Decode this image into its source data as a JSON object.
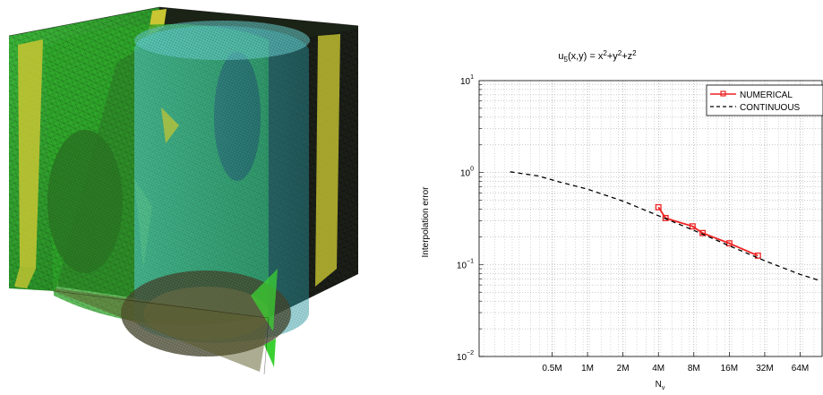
{
  "mesh_figure": {
    "icon": "mesh-cube-icon",
    "colors": {
      "background": "#0b0f08",
      "green": "#2fa82a",
      "yellow": "#c8c632",
      "cyan": "#3fc6c6",
      "lines": "#1a1a1a"
    }
  },
  "chart_data": {
    "type": "line",
    "title_parts": {
      "base": "u",
      "sub": "5",
      "args": "(x,y) = x",
      "p1": "2",
      "t2": "+y",
      "p2": "2",
      "t3": "+z",
      "p3": "2"
    },
    "ylabel": "Interpolation error",
    "xlabel_parts": {
      "base": "N",
      "sub": "v"
    },
    "xscale": "log2",
    "yscale": "log10",
    "xlim": [
      120000,
      100000000
    ],
    "ylim": [
      0.01,
      10
    ],
    "x_ticks": [
      {
        "value": 500000,
        "label": "0.5M"
      },
      {
        "value": 1000000,
        "label": "1M"
      },
      {
        "value": 2000000,
        "label": "2M"
      },
      {
        "value": 4000000,
        "label": "4M"
      },
      {
        "value": 8000000,
        "label": "8M"
      },
      {
        "value": 16000000,
        "label": "16M"
      },
      {
        "value": 32000000,
        "label": "32M"
      },
      {
        "value": 64000000,
        "label": "64M"
      }
    ],
    "y_ticks": [
      {
        "value": 0.01,
        "mantissa": "10",
        "exp": "−2"
      },
      {
        "value": 0.1,
        "mantissa": "10",
        "exp": "−1"
      },
      {
        "value": 1,
        "mantissa": "10",
        "exp": "0"
      },
      {
        "value": 10,
        "mantissa": "10",
        "exp": "1"
      }
    ],
    "grid": true,
    "legend_position": "top-right",
    "series": [
      {
        "name": "NUMERICAL",
        "color": "#ee2222",
        "style": "solid",
        "marker": "square",
        "x": [
          4000000,
          4600000,
          7800000,
          9500000,
          16000000,
          28000000
        ],
        "y": [
          0.42,
          0.32,
          0.26,
          0.22,
          0.17,
          0.125
        ]
      },
      {
        "name": "CONTINUOUS",
        "color": "#000000",
        "style": "dashed",
        "marker": "none",
        "x": [
          220000,
          380000,
          600000,
          1000000,
          2000000,
          4000000,
          8000000,
          16000000,
          32000000,
          64000000,
          90000000
        ],
        "y": [
          1.02,
          0.92,
          0.78,
          0.66,
          0.49,
          0.34,
          0.235,
          0.16,
          0.11,
          0.078,
          0.068
        ]
      }
    ]
  }
}
